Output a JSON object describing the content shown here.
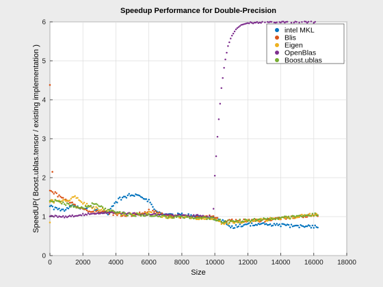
{
  "chart_data": {
    "type": "scatter",
    "title": "Speedup Performance for Double-Precision",
    "xlabel": "Size",
    "ylabel": "SpeedUP( Boost.ublas.tensor / existing implementation  )",
    "xlim": [
      0,
      18000
    ],
    "ylim": [
      0,
      6
    ],
    "x_ticks": [
      0,
      2000,
      4000,
      6000,
      8000,
      10000,
      12000,
      14000,
      16000,
      18000
    ],
    "y_ticks": [
      0,
      1,
      2,
      3,
      4,
      5,
      6
    ],
    "grid": true,
    "legend_position": "top-right",
    "x_start": 0,
    "x_end": 16300,
    "x_step": 80,
    "series": [
      {
        "name": "intel MKL",
        "color": "#0072BD",
        "x": [
          0,
          300,
          800,
          1500,
          2000,
          2500,
          3000,
          3500,
          3800,
          4200,
          4800,
          5500,
          6000,
          6500,
          7000,
          8000,
          9000,
          10000,
          10500,
          11000,
          11500,
          12000,
          13000,
          14000,
          15000,
          16000,
          16300
        ],
        "y": [
          1.3,
          1.2,
          1.15,
          1.3,
          1.2,
          1.25,
          1.15,
          1.05,
          1.25,
          1.45,
          1.55,
          1.55,
          1.4,
          1.1,
          1.05,
          1.05,
          1.0,
          0.95,
          0.9,
          0.72,
          0.78,
          0.8,
          0.8,
          0.78,
          0.75,
          0.75,
          0.76
        ]
      },
      {
        "name": "Blis",
        "color": "#D95319",
        "x": [
          0,
          300,
          800,
          1500,
          2000,
          2500,
          3000,
          3500,
          4000,
          5000,
          6000,
          7000,
          8000,
          9000,
          10000,
          10500,
          11000,
          12000,
          13000,
          14000,
          15000,
          16000,
          16300
        ],
        "y": [
          1.7,
          1.6,
          1.45,
          1.3,
          1.2,
          1.1,
          1.15,
          1.1,
          1.05,
          1.05,
          1.15,
          1.05,
          1.0,
          1.0,
          1.0,
          0.85,
          0.9,
          0.9,
          0.9,
          0.95,
          1.0,
          1.05,
          1.05
        ]
      },
      {
        "name": "Eigen",
        "color": "#EDB120",
        "x": [
          0,
          300,
          800,
          1200,
          1600,
          2000,
          2500,
          3000,
          3500,
          4000,
          5000,
          6000,
          7000,
          8000,
          9000,
          10000,
          10500,
          11000,
          12000,
          13000,
          14000,
          15000,
          16000,
          16300
        ],
        "y": [
          1.4,
          1.38,
          1.4,
          1.45,
          1.5,
          1.35,
          1.25,
          1.2,
          1.15,
          1.08,
          1.05,
          1.1,
          1.0,
          1.0,
          0.95,
          0.95,
          0.8,
          0.85,
          0.88,
          0.92,
          0.95,
          1.0,
          1.05,
          1.08
        ]
      },
      {
        "name": "OpenBlas",
        "color": "#7E2F8E",
        "x": [
          0,
          500,
          1000,
          2000,
          3000,
          4000,
          5000,
          6000,
          7000,
          8000,
          9000,
          9500,
          9900,
          10000,
          10200,
          10400,
          10600,
          10800,
          11000,
          11300,
          11600,
          12000,
          12500,
          13000,
          14000,
          15000,
          16000,
          16300
        ],
        "y": [
          1.02,
          1.0,
          1.0,
          1.05,
          1.1,
          1.1,
          1.08,
          1.05,
          1.05,
          1.03,
          1.02,
          1.0,
          1.0,
          2.05,
          3.3,
          4.3,
          4.95,
          5.38,
          5.62,
          5.82,
          5.92,
          5.97,
          5.99,
          6.0,
          6.0,
          6.0,
          6.0,
          6.0
        ]
      },
      {
        "name": "Boost.ublas",
        "color": "#77AC30",
        "x": [
          0,
          300,
          800,
          1500,
          2000,
          2700,
          3000,
          3500,
          4000,
          5000,
          6000,
          7000,
          8000,
          9000,
          10000,
          10500,
          11000,
          12000,
          13000,
          14000,
          15000,
          16000,
          16300
        ],
        "y": [
          1.42,
          1.4,
          1.35,
          1.25,
          1.2,
          1.35,
          1.3,
          1.15,
          1.1,
          1.05,
          1.05,
          1.0,
          1.0,
          0.95,
          0.95,
          0.85,
          0.88,
          0.9,
          0.93,
          0.96,
          1.0,
          1.05,
          1.08
        ]
      }
    ],
    "outliers": [
      {
        "series": "Blis",
        "x": 0,
        "y": 4.38
      },
      {
        "series": "Blis",
        "x": 150,
        "y": 2.15
      },
      {
        "series": "Eigen",
        "x": 0,
        "y": 0.85
      }
    ]
  }
}
